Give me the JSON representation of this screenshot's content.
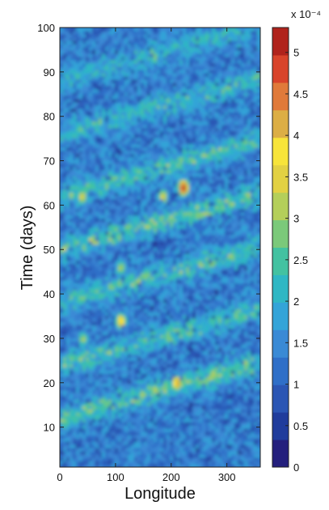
{
  "chart_data": {
    "type": "heatmap",
    "xlabel": "Longitude",
    "ylabel": "Time (days)",
    "xlim": [
      0,
      360
    ],
    "ylim": [
      1,
      100
    ],
    "xticks": [
      0,
      100,
      200,
      300
    ],
    "yticks": [
      10,
      20,
      30,
      40,
      50,
      60,
      70,
      80,
      90,
      100
    ],
    "colorbar": {
      "range": [
        0,
        5.3
      ],
      "ticks": [
        0,
        0.5,
        1,
        1.5,
        2,
        2.5,
        3,
        3.5,
        4,
        4.5,
        5
      ],
      "tick_labels": [
        "0",
        "0.5",
        "1",
        "1.5",
        "2",
        "2.5",
        "3",
        "3.5",
        "4",
        "4.5",
        "5"
      ],
      "multiplier_label": "x 10⁻⁴",
      "colormap": [
        "#241f7d",
        "#203c9c",
        "#2b56b4",
        "#2f6fc8",
        "#3a8ad5",
        "#33a4d8",
        "#2fb7c4",
        "#43c2a1",
        "#7bc97a",
        "#b4cf5a",
        "#e2d143",
        "#f7e43a",
        "#dcae45",
        "#e07a3a",
        "#d8442b",
        "#b0231c"
      ]
    },
    "grid": false,
    "description_values": {
      "background_level": 1.3,
      "band_level": 2.6,
      "hotspots": [
        {
          "x": 222,
          "y": 64,
          "value": 5.2
        },
        {
          "x": 210,
          "y": 20,
          "value": 4.3
        },
        {
          "x": 110,
          "y": 34,
          "value": 4.1
        },
        {
          "x": 185,
          "y": 62,
          "value": 3.6
        },
        {
          "x": 40,
          "y": 62,
          "value": 3.5
        },
        {
          "x": 275,
          "y": 22,
          "value": 3.3
        },
        {
          "x": 110,
          "y": 46,
          "value": 3.2
        },
        {
          "x": 42,
          "y": 30,
          "value": 3.1
        }
      ]
    }
  }
}
